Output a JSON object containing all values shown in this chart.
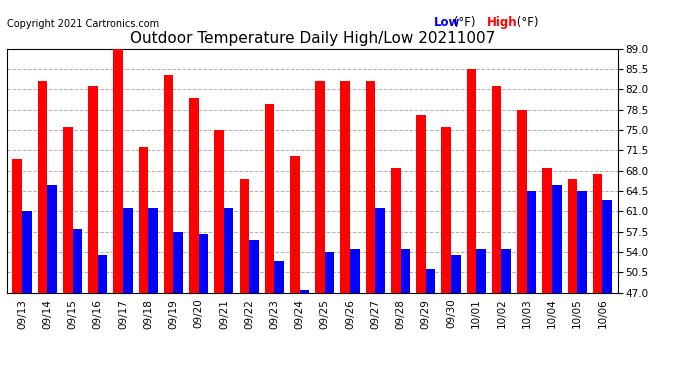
{
  "title": "Outdoor Temperature Daily High/Low 20211007",
  "copyright": "Copyright 2021 Cartronics.com",
  "dates": [
    "09/13",
    "09/14",
    "09/15",
    "09/16",
    "09/17",
    "09/18",
    "09/19",
    "09/20",
    "09/21",
    "09/22",
    "09/23",
    "09/24",
    "09/25",
    "09/26",
    "09/27",
    "09/28",
    "09/29",
    "09/30",
    "10/01",
    "10/02",
    "10/03",
    "10/04",
    "10/05",
    "10/06"
  ],
  "highs": [
    70.0,
    83.5,
    75.5,
    82.5,
    89.0,
    72.0,
    84.5,
    80.5,
    75.0,
    66.5,
    79.5,
    70.5,
    83.5,
    83.5,
    83.5,
    68.5,
    77.5,
    75.5,
    85.5,
    82.5,
    78.5,
    68.5,
    66.5,
    67.5
  ],
  "lows": [
    61.0,
    65.5,
    58.0,
    53.5,
    61.5,
    61.5,
    57.5,
    57.0,
    61.5,
    56.0,
    52.5,
    47.5,
    54.0,
    54.5,
    61.5,
    54.5,
    51.0,
    53.5,
    54.5,
    54.5,
    64.5,
    65.5,
    64.5,
    63.0
  ],
  "bar_width": 0.38,
  "ylim_min": 47.0,
  "ylim_max": 89.0,
  "yticks": [
    47.0,
    50.5,
    54.0,
    57.5,
    61.0,
    64.5,
    68.0,
    71.5,
    75.0,
    78.5,
    82.0,
    85.5,
    89.0
  ],
  "high_color": "#ff0000",
  "low_color": "#0000ff",
  "bg_color": "#ffffff",
  "grid_color": "#b0b0b0",
  "title_fontsize": 11,
  "tick_fontsize": 7.5,
  "legend_fontsize": 8.5,
  "copyright_fontsize": 7
}
